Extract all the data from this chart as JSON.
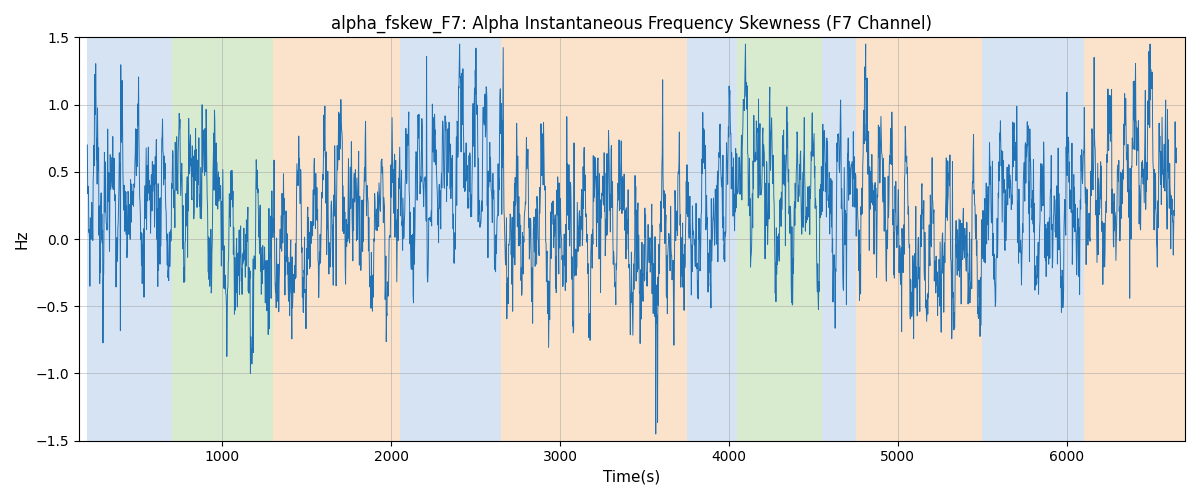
{
  "title": "alpha_fskew_F7: Alpha Instantaneous Frequency Skewness (F7 Channel)",
  "xlabel": "Time(s)",
  "ylabel": "Hz",
  "ylim": [
    -1.5,
    1.5
  ],
  "xlim": [
    150,
    6700
  ],
  "line_color": "#2171b5",
  "line_width": 0.7,
  "background_color": "#ffffff",
  "grid_color": "#a0a0a0",
  "bands": [
    {
      "start": 200,
      "end": 700,
      "color": "#adc8e8",
      "alpha": 0.5
    },
    {
      "start": 700,
      "end": 1300,
      "color": "#b5d9a0",
      "alpha": 0.5
    },
    {
      "start": 1300,
      "end": 2050,
      "color": "#f8c899",
      "alpha": 0.5
    },
    {
      "start": 2050,
      "end": 2650,
      "color": "#adc8e8",
      "alpha": 0.5
    },
    {
      "start": 2650,
      "end": 3750,
      "color": "#f8c899",
      "alpha": 0.5
    },
    {
      "start": 3750,
      "end": 4050,
      "color": "#adc8e8",
      "alpha": 0.5
    },
    {
      "start": 4050,
      "end": 4550,
      "color": "#b5d9a0",
      "alpha": 0.5
    },
    {
      "start": 4550,
      "end": 4750,
      "color": "#adc8e8",
      "alpha": 0.5
    },
    {
      "start": 4750,
      "end": 5500,
      "color": "#f8c899",
      "alpha": 0.5
    },
    {
      "start": 5500,
      "end": 6100,
      "color": "#adc8e8",
      "alpha": 0.5
    },
    {
      "start": 6100,
      "end": 6700,
      "color": "#f8c899",
      "alpha": 0.5
    }
  ],
  "seed": 7,
  "n_points": 3000,
  "t_start": 200,
  "t_end": 6650,
  "title_fontsize": 12,
  "axis_fontsize": 11,
  "tick_fontsize": 10
}
